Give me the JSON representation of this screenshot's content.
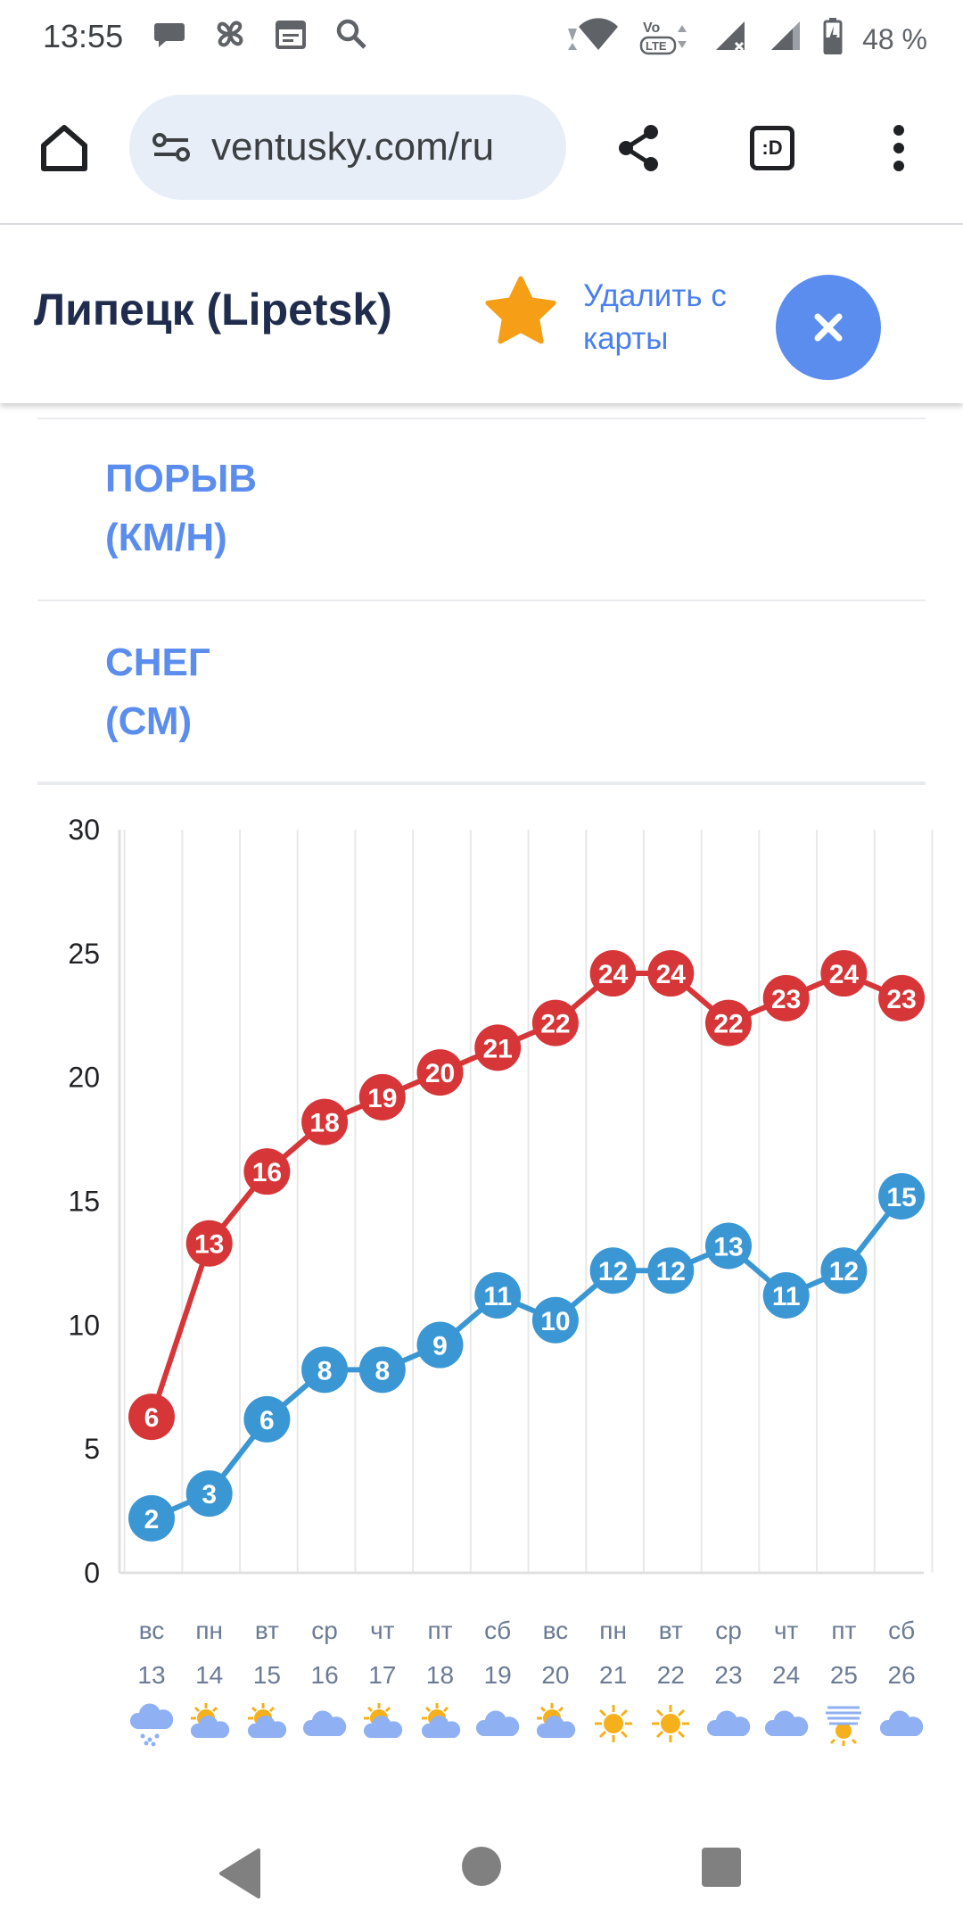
{
  "status_bar": {
    "time": "13:55",
    "battery": "48 %",
    "icons_left": [
      "chat-icon",
      "fan-icon",
      "calendar-icon",
      "search-icon"
    ],
    "icons_right": [
      "wifi-icon",
      "volte-icon",
      "signal-icon",
      "signal-icon",
      "battery-icon"
    ]
  },
  "browser": {
    "url": "ventusky.com/ru",
    "tab_label": ":D"
  },
  "city": {
    "name": "Липецк (Lipetsk)",
    "remove_line1": "Удалить с",
    "remove_line2": "карты",
    "star_color": "#f59e16",
    "close_color": "#5b8def"
  },
  "rows": [
    {
      "line1": "ПОРЫВ",
      "line2": "(КМ/Н)"
    },
    {
      "line1": "СНЕГ",
      "line2": "(СМ)"
    }
  ],
  "chart_data": {
    "type": "line",
    "y_ticks": [
      "0",
      "5",
      "10",
      "15",
      "20",
      "25",
      "30"
    ],
    "ylim": [
      0,
      30
    ],
    "grid": true,
    "categories": [
      "вс 13",
      "пн 14",
      "вт 15",
      "ср 16",
      "чт 17",
      "пт 18",
      "сб 19",
      "вс 20",
      "пн 21",
      "вт 22",
      "ср 23",
      "чт 24",
      "пт 25",
      "сб 26"
    ],
    "weekdays": [
      "вс",
      "пн",
      "вт",
      "ср",
      "чт",
      "пт",
      "сб",
      "вс",
      "пн",
      "вт",
      "ср",
      "чт",
      "пт",
      "сб"
    ],
    "dates": [
      "13",
      "14",
      "15",
      "16",
      "17",
      "18",
      "19",
      "20",
      "21",
      "22",
      "23",
      "24",
      "25",
      "26"
    ],
    "weather_icons": [
      "snow-cloud-icon",
      "partly-cloudy-icon",
      "partly-cloudy-icon",
      "cloud-icon",
      "partly-cloudy-icon",
      "partly-cloudy-icon",
      "cloud-icon",
      "partly-cloudy-icon",
      "sun-icon",
      "sun-icon",
      "cloud-icon",
      "cloud-icon",
      "fog-sun-icon",
      "cloud-icon"
    ],
    "series": [
      {
        "color": "#d63638",
        "values": [
          6.3,
          13.3,
          16.2,
          18.2,
          19.2,
          20.2,
          21.2,
          22.2,
          24.2,
          24.2,
          22.2,
          23.2,
          24.2,
          23.2
        ],
        "labels": [
          "6",
          "13",
          "16",
          "18",
          "19",
          "20",
          "21",
          "22",
          "24",
          "24",
          "22",
          "23",
          "24",
          "23"
        ]
      },
      {
        "color": "#3b97d3",
        "values": [
          2.2,
          3.2,
          6.2,
          8.2,
          8.2,
          9.2,
          11.2,
          10.2,
          12.2,
          12.2,
          13.2,
          11.2,
          12.2,
          15.2
        ],
        "labels": [
          "2",
          "3",
          "6",
          "8",
          "8",
          "9",
          "11",
          "10",
          "12",
          "12",
          "13",
          "11",
          "12",
          "15"
        ]
      }
    ]
  }
}
